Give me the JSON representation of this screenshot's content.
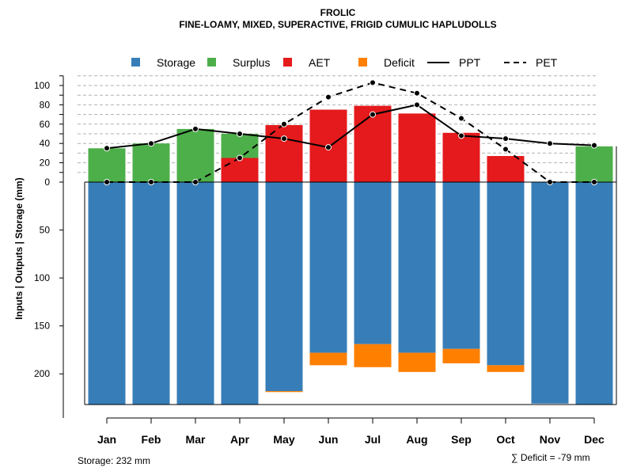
{
  "chart_data": {
    "type": "water-balance",
    "title": "FROLIC",
    "subtitle": "FINE-LOAMY, MIXED, SUPERACTIVE, FRIGID CUMULIC HAPLUDOLLS",
    "ylabel": "Inputs | Outputs | Storage    (mm)",
    "months": [
      "Jan",
      "Feb",
      "Mar",
      "Apr",
      "May",
      "Jun",
      "Jul",
      "Aug",
      "Sep",
      "Oct",
      "Nov",
      "Dec"
    ],
    "legend": [
      "Storage",
      "Surplus",
      "AET",
      "Deficit",
      "PPT",
      "PET"
    ],
    "upper_ticks": [
      "0",
      "20",
      "40",
      "60",
      "80",
      "100"
    ],
    "lower_ticks": [
      "50",
      "100",
      "150",
      "200"
    ],
    "upper_ylim": [
      0,
      110
    ],
    "lower_ylim": [
      0,
      232
    ],
    "series": [
      {
        "name": "PPT",
        "values": [
          35,
          40,
          55,
          50,
          45,
          36,
          70,
          80,
          48,
          45,
          40,
          38
        ]
      },
      {
        "name": "PET",
        "values": [
          0,
          0,
          0,
          25,
          60,
          88,
          103,
          92,
          66,
          34,
          0,
          0
        ]
      },
      {
        "name": "AET",
        "values": [
          0,
          0,
          0,
          25,
          59,
          75,
          79,
          71,
          51,
          27,
          0,
          0
        ]
      },
      {
        "name": "Surplus",
        "values": [
          35,
          40,
          55,
          25,
          0,
          0,
          0,
          0,
          0,
          0,
          0,
          37
        ]
      },
      {
        "name": "Storage",
        "values": [
          232,
          232,
          232,
          232,
          218,
          178,
          169,
          178,
          174,
          191,
          231,
          232
        ]
      },
      {
        "name": "Deficit",
        "values": [
          0,
          0,
          0,
          0,
          1,
          13,
          24,
          20,
          15,
          7,
          0,
          0
        ]
      }
    ],
    "colors": {
      "Storage": "#377EB8",
      "Surplus": "#4DAF4A",
      "AET": "#E41A1C",
      "Deficit": "#FF7F00",
      "PPT": "#000000",
      "PET": "#000000"
    },
    "storage_note": "Storage: 232 mm",
    "deficit_note": "∑ Deficit = -79 mm"
  }
}
